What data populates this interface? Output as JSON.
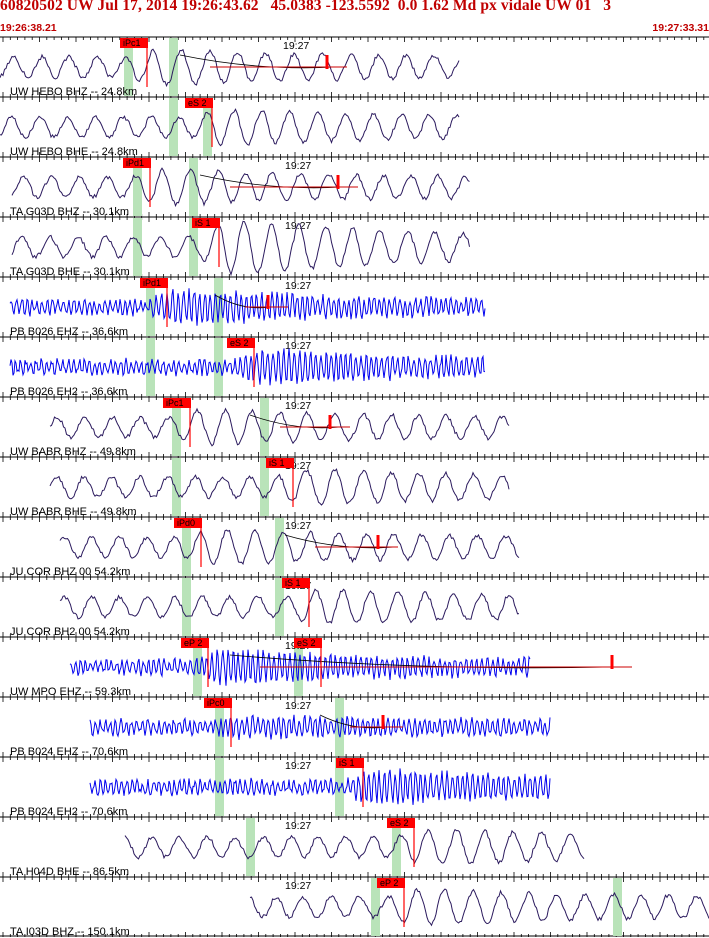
{
  "header": {
    "title": "60820502 UW Jul 17, 2014 19:26:43.62   45.0383 -123.5592  0.0 1.62 Md px vidale UW 01   3",
    "start_time": "19:26:38.21",
    "end_time": "19:27:33.31"
  },
  "colors": {
    "header_text": "#c00000",
    "phase_box": "#ff0000",
    "pick_window": "#b9e3b9",
    "trace_velocity": "#2b1a5e",
    "trace_strainmeter": "#0000ee",
    "coda_line": "#cc0000",
    "fit_curve": "#000000"
  },
  "chart_data": {
    "type": "line",
    "chart_kind": "seismogram record section",
    "time_axis": {
      "start": "19:26:38.21",
      "end": "19:27:33.31",
      "marked_minute": "19:27",
      "minor_ticks_per_second": 1
    },
    "panels": [
      {
        "label": "UW HEBO BHZ -- 24.8km",
        "phase": "iPc1",
        "channel_type": "velocity",
        "amplitude": "medium",
        "coda": true
      },
      {
        "label": "UW HEBO BHE -- 24.8km",
        "phase": "eS 2",
        "channel_type": "velocity",
        "amplitude": "medium",
        "coda": false
      },
      {
        "label": "TA G03D BHZ -- 30.1km",
        "phase": "iPd1",
        "channel_type": "velocity",
        "amplitude": "medium",
        "coda": true
      },
      {
        "label": "TA G03D BHE -- 30.1km",
        "phase": "iS 1",
        "channel_type": "velocity",
        "amplitude": "large",
        "coda": false
      },
      {
        "label": "PB B026 EHZ -- 36.6km",
        "phase": "iPd1",
        "channel_type": "strainmeter",
        "amplitude": "large",
        "coda": true
      },
      {
        "label": "PB B026 EH2 -- 36.6km",
        "phase": "eS 2",
        "channel_type": "strainmeter",
        "amplitude": "large",
        "coda": false
      },
      {
        "label": "UW BABR BHZ -- 49.8km",
        "phase": "iPc1",
        "channel_type": "velocity",
        "amplitude": "medium",
        "coda": true
      },
      {
        "label": "UW BABR BHE -- 49.8km",
        "phase": "iS 1",
        "channel_type": "velocity",
        "amplitude": "medium",
        "coda": false
      },
      {
        "label": "JU COR BHZ 00 54.2km",
        "phase": "iPd0",
        "channel_type": "velocity",
        "amplitude": "medium",
        "coda": true
      },
      {
        "label": "JU COR BH2 00 54.2km",
        "phase": "iS 1",
        "channel_type": "velocity",
        "amplitude": "medium",
        "coda": false
      },
      {
        "label": "UW MPO EHZ -- 59.3km",
        "phase": "eP 2",
        "second_phase": "eS 2",
        "channel_type": "strainmeter",
        "amplitude": "large",
        "coda": true
      },
      {
        "label": "PB B024 EHZ -- 70.6km",
        "phase": "iPc0",
        "channel_type": "strainmeter",
        "amplitude": "medium",
        "coda": true
      },
      {
        "label": "PB B024 EH2 -- 70.6km",
        "phase": "iS 1",
        "channel_type": "strainmeter",
        "amplitude": "large",
        "coda": false
      },
      {
        "label": "TA H04D BHE -- 86.5km",
        "phase": "eS 2",
        "channel_type": "velocity",
        "amplitude": "medium",
        "coda": false
      },
      {
        "label": "TA I03D BHZ -- 150.1km",
        "phase": "eP 2",
        "channel_type": "velocity",
        "amplitude": "medium",
        "coda": false
      }
    ]
  }
}
